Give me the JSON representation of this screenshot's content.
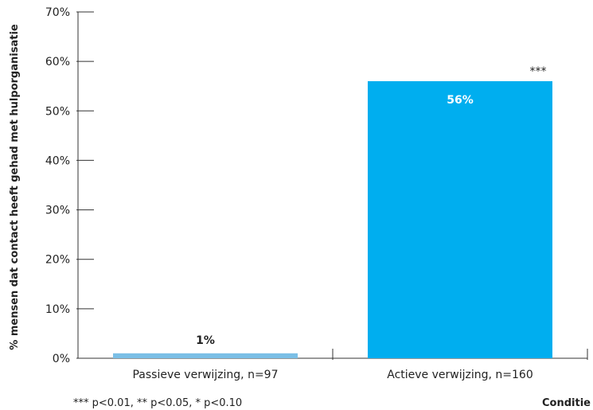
{
  "chart_data": {
    "type": "bar",
    "categories": [
      "Passieve verwijzing, n=97",
      "Actieve verwijzing, n=160"
    ],
    "values": [
      1,
      56
    ],
    "value_labels": [
      "1%",
      "56%"
    ],
    "significance": [
      "",
      "***"
    ],
    "bar_colors": [
      "#7bbfe6",
      "#00aeef"
    ],
    "value_label_colors": [
      "#222222",
      "#ffffff"
    ],
    "ylabel": "% mensen dat contact heeft gehad met hulporganisatie",
    "xlabel": "Conditie",
    "ylim": [
      0,
      70
    ],
    "yticks": [
      0,
      10,
      20,
      30,
      40,
      50,
      60,
      70
    ],
    "ytick_labels": [
      "0%",
      "10%",
      "20%",
      "30%",
      "40%",
      "50%",
      "60%",
      "70%"
    ],
    "grid": false,
    "footnote": "*** p<0.01, ** p<0.05, * p<0.10"
  }
}
